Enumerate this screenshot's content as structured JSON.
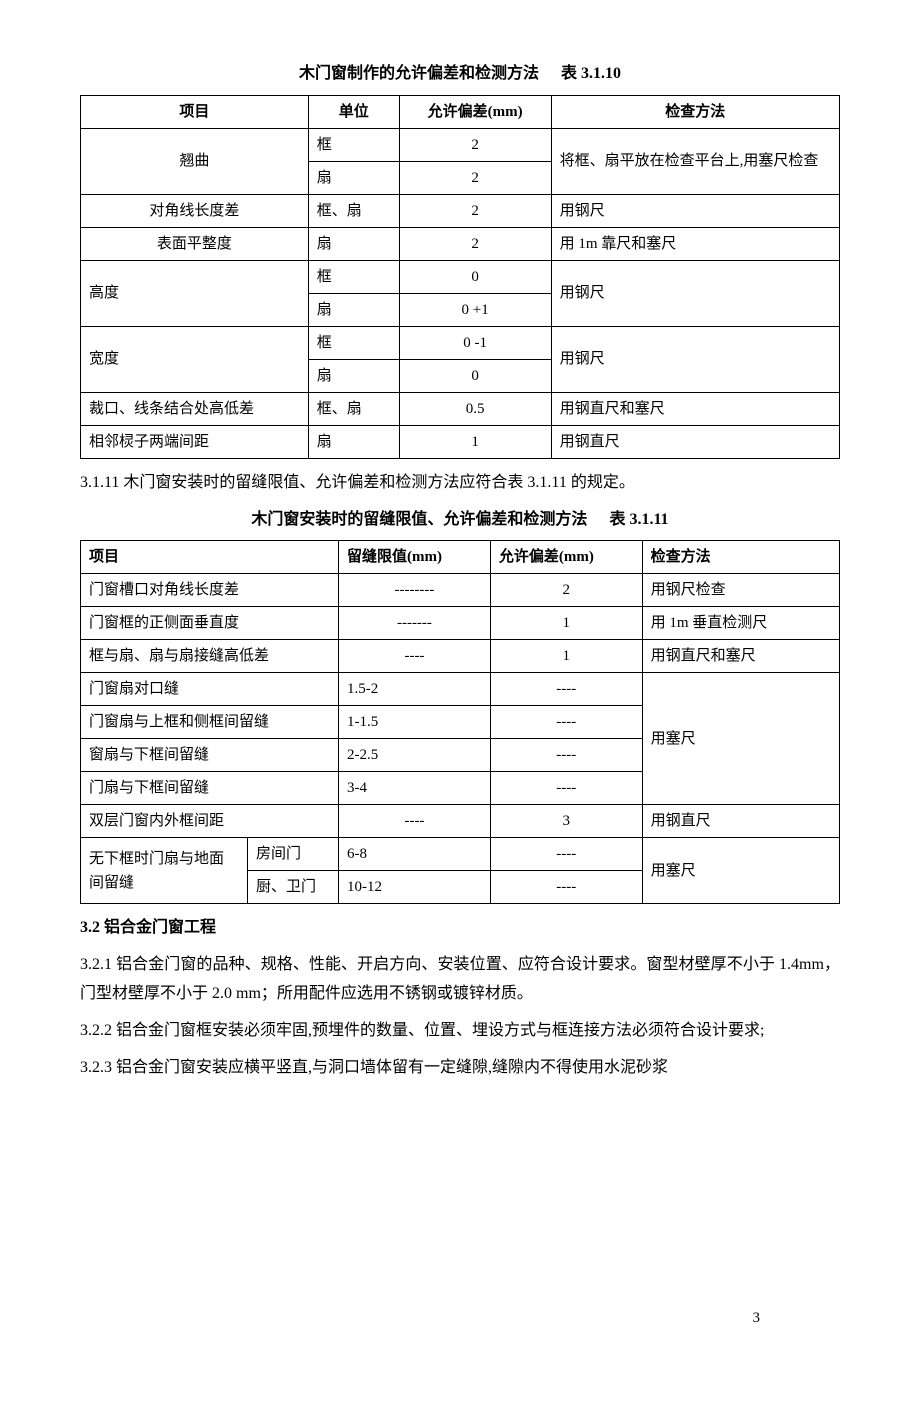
{
  "table1": {
    "title_main": "木门窗制作的允许偏差和检测方法",
    "title_label": "表 3.1.10",
    "headers": {
      "item": "项目",
      "unit": "单位",
      "deviation": "允许偏差(mm)",
      "method": "检查方法"
    },
    "warp": {
      "item": "翘曲",
      "unit_a": "框",
      "dev_a": "2",
      "unit_b": "扇",
      "dev_b": "2",
      "method": "将框、扇平放在检查平台上,用塞尺检查"
    },
    "diag": {
      "item": "对角线长度差",
      "unit": "框、扇",
      "dev": "2",
      "method": "用钢尺"
    },
    "flat": {
      "item": "表面平整度",
      "unit": "扇",
      "dev": "2",
      "method": "用 1m 靠尺和塞尺"
    },
    "height": {
      "item": "高度",
      "unit_a": "框",
      "dev_a": "0",
      "unit_b": "扇",
      "dev_b": "0  +1",
      "method": "用钢尺"
    },
    "width": {
      "item": "宽度",
      "unit_a": "框",
      "dev_a": "0  -1",
      "unit_b": "扇",
      "dev_b": "0",
      "method": "用钢尺"
    },
    "joint": {
      "item": "裁口、线条结合处高低差",
      "unit": "框、扇",
      "dev": "0.5",
      "method": "用钢直尺和塞尺"
    },
    "spacing": {
      "item": "相邻棂子两端间距",
      "unit": "扇",
      "dev": "1",
      "method": "用钢直尺"
    }
  },
  "para_3_1_11": "3.1.11 木门窗安装时的留缝限值、允许偏差和检测方法应符合表 3.1.11 的规定。",
  "table2": {
    "title_main": "木门窗安装时的留缝限值、允许偏差和检测方法",
    "title_label": "表 3.1.11",
    "headers": {
      "item": "项目",
      "gap": "留缝限值(mm)",
      "deviation": "允许偏差(mm)",
      "method": "检查方法"
    },
    "r1": {
      "item": "门窗槽口对角线长度差",
      "gap": "--------",
      "dev": "2",
      "method": "用钢尺检查"
    },
    "r2": {
      "item": "门窗框的正侧面垂直度",
      "gap": "-------",
      "dev": "1",
      "method": "用 1m 垂直检测尺"
    },
    "r3": {
      "item": "框与扇、扇与扇接缝高低差",
      "gap": "----",
      "dev": "1",
      "method": "用钢直尺和塞尺"
    },
    "r4": {
      "item": "门窗扇对口缝",
      "gap": "1.5-2",
      "dev": "----",
      "method": "用塞尺"
    },
    "r5": {
      "item": "门窗扇与上框和侧框间留缝",
      "gap": "1-1.5",
      "dev": "----",
      "method": ""
    },
    "r6": {
      "item": "窗扇与下框间留缝",
      "gap": "2-2.5",
      "dev": "----",
      "method": ""
    },
    "r7": {
      "item": "门扇与下框间留缝",
      "gap": "3-4",
      "dev": "----",
      "method": ""
    },
    "r8": {
      "item": "双层门窗内外框间距",
      "gap": "----",
      "dev": "3",
      "method": "用钢直尺"
    },
    "r9": {
      "item_a": "无下框时门扇与地面间留缝",
      "item_b1": "房间门",
      "item_b2": "厨、卫门",
      "gap1": "6-8",
      "gap2": "10-12",
      "dev1": "----",
      "dev2": "----",
      "method": "用塞尺"
    }
  },
  "section_3_2": "3.2 铝合金门窗工程",
  "para_3_2_1": "3.2.1 铝合金门窗的品种、规格、性能、开启方向、安装位置、应符合设计要求。窗型材壁厚不小于 1.4mm，门型材壁厚不小于 2.0 mm；所用配件应选用不锈钢或镀锌材质。",
  "para_3_2_2": "3.2.2 铝合金门窗框安装必须牢固,预埋件的数量、位置、埋设方式与框连接方法必须符合设计要求;",
  "para_3_2_3": "3.2.3 铝合金门窗安装应横平竖直,与洞口墙体留有一定缝隙,缝隙内不得使用水泥砂浆",
  "page_number": "3"
}
